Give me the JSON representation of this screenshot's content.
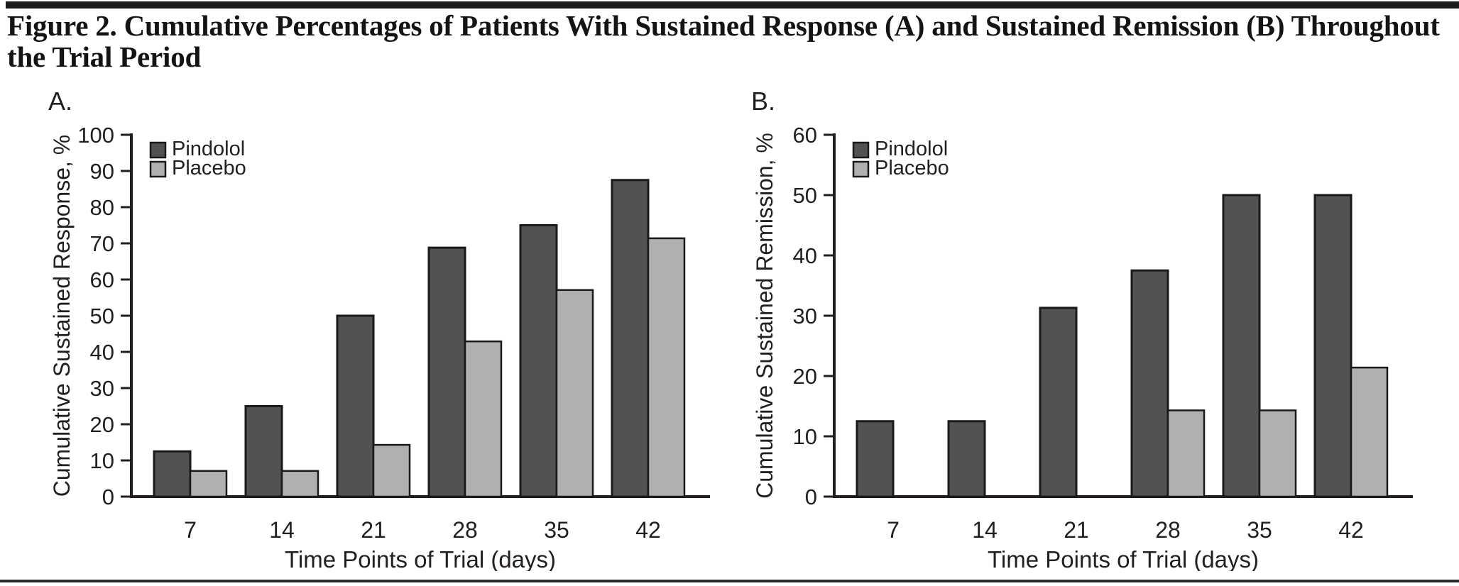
{
  "page": {
    "title_line1": "Figure 2. Cumulative Percentages of Patients With Sustained Response (A) and Sustained Remission (B) Throughout",
    "title_line2": "the Trial Period"
  },
  "colors": {
    "pindolol_fill": "#525252",
    "placebo_fill": "#b0b0b0",
    "bar_border": "#1a1a1a",
    "axis": "#231f20",
    "top_bar": "#1c1c1c"
  },
  "chart_data": [
    {
      "type": "bar",
      "panel_label": "A.",
      "categories": [
        "7",
        "14",
        "21",
        "28",
        "35",
        "42"
      ],
      "series": [
        {
          "name": "Pindolol",
          "color": "#525252",
          "values": [
            12.5,
            25,
            50,
            68.8,
            75,
            87.5
          ]
        },
        {
          "name": "Placebo",
          "color": "#b0b0b0",
          "values": [
            7.1,
            7.1,
            14.3,
            42.9,
            57.1,
            71.4
          ]
        }
      ],
      "xlabel": "Time Points of Trial (days)",
      "ylabel": "Cumulative Sustained Response, %",
      "ylim": [
        0,
        100
      ],
      "ytick_step": 10,
      "grid": false,
      "legend_position": "top-left"
    },
    {
      "type": "bar",
      "panel_label": "B.",
      "categories": [
        "7",
        "14",
        "21",
        "28",
        "35",
        "42"
      ],
      "series": [
        {
          "name": "Pindolol",
          "color": "#525252",
          "values": [
            12.5,
            12.5,
            31.3,
            37.5,
            50,
            50
          ]
        },
        {
          "name": "Placebo",
          "color": "#b0b0b0",
          "values": [
            0,
            0,
            0,
            14.3,
            14.3,
            21.4
          ]
        }
      ],
      "xlabel": "Time Points of Trial (days)",
      "ylabel": "Cumulative Sustained Remission, %",
      "ylim": [
        0,
        60
      ],
      "ytick_step": 10,
      "grid": false,
      "legend_position": "top-left"
    }
  ]
}
